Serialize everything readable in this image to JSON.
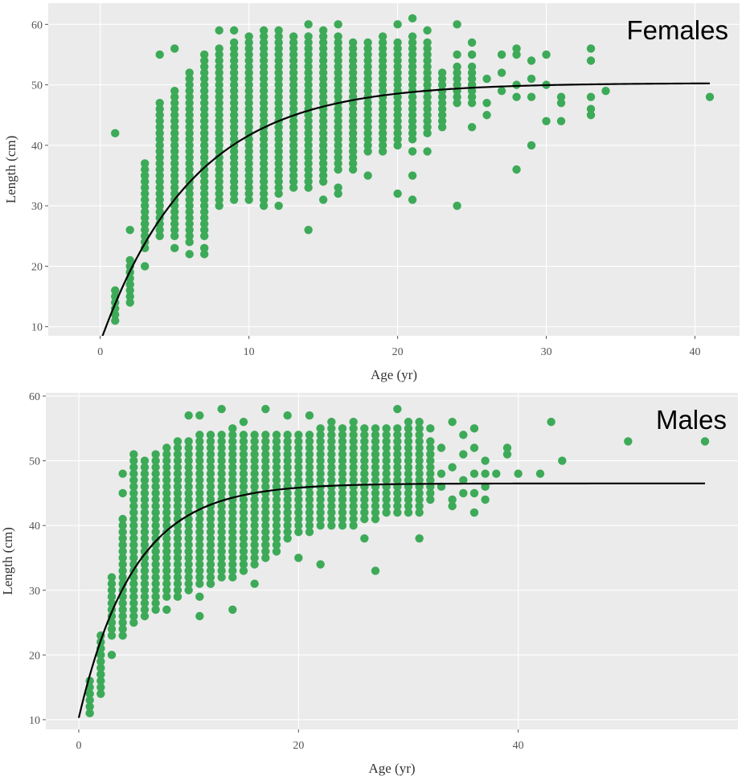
{
  "chart_data": [
    {
      "type": "scatter",
      "title": "Females",
      "xlabel": "Age (yr)",
      "ylabel": "Length (cm)",
      "xlim": [
        -3.5,
        43
      ],
      "ylim": [
        8.5,
        63.5
      ],
      "xticks": [
        0,
        10,
        20,
        30,
        40
      ],
      "yticks": [
        10,
        20,
        30,
        40,
        50,
        60
      ],
      "grid": true,
      "background": "#ebebeb",
      "point_color": "#3daa58",
      "line_color": "#000000",
      "range_series": {
        "name": "",
        "columns": [
          {
            "x": 1,
            "ymin": 11,
            "ymax": 16
          },
          {
            "x": 2,
            "ymin": 14,
            "ymax": 21
          },
          {
            "x": 3,
            "ymin": 23,
            "ymax": 37
          },
          {
            "x": 4,
            "ymin": 25,
            "ymax": 47
          },
          {
            "x": 5,
            "ymin": 25,
            "ymax": 49
          },
          {
            "x": 6,
            "ymin": 24,
            "ymax": 52
          },
          {
            "x": 7,
            "ymin": 25,
            "ymax": 55
          },
          {
            "x": 8,
            "ymin": 30,
            "ymax": 56
          },
          {
            "x": 9,
            "ymin": 31,
            "ymax": 57
          },
          {
            "x": 10,
            "ymin": 31,
            "ymax": 58
          },
          {
            "x": 11,
            "ymin": 31,
            "ymax": 58
          },
          {
            "x": 12,
            "ymin": 32,
            "ymax": 58
          },
          {
            "x": 13,
            "ymin": 33,
            "ymax": 58
          },
          {
            "x": 14,
            "ymin": 33,
            "ymax": 58
          },
          {
            "x": 15,
            "ymin": 34,
            "ymax": 58
          },
          {
            "x": 16,
            "ymin": 36,
            "ymax": 58
          },
          {
            "x": 17,
            "ymin": 37,
            "ymax": 57
          },
          {
            "x": 18,
            "ymin": 39,
            "ymax": 57
          },
          {
            "x": 19,
            "ymin": 40,
            "ymax": 57
          },
          {
            "x": 20,
            "ymin": 40,
            "ymax": 57
          },
          {
            "x": 21,
            "ymin": 41,
            "ymax": 58
          },
          {
            "x": 22,
            "ymin": 42,
            "ymax": 57
          },
          {
            "x": 23,
            "ymin": 43,
            "ymax": 52
          },
          {
            "x": 24,
            "ymin": 47,
            "ymax": 53
          },
          {
            "x": 25,
            "ymin": 47,
            "ymax": 53
          }
        ]
      },
      "points": [
        [
          1,
          42
        ],
        [
          2,
          26
        ],
        [
          2,
          17
        ],
        [
          3,
          20
        ],
        [
          3,
          27
        ],
        [
          3,
          35
        ],
        [
          4,
          55
        ],
        [
          5,
          56
        ],
        [
          5,
          23
        ],
        [
          6,
          22
        ],
        [
          7,
          23
        ],
        [
          7,
          22
        ],
        [
          8,
          59
        ],
        [
          9,
          59
        ],
        [
          11,
          30
        ],
        [
          11,
          59
        ],
        [
          12,
          30
        ],
        [
          12,
          59
        ],
        [
          14,
          60
        ],
        [
          14,
          26
        ],
        [
          15,
          59
        ],
        [
          15,
          31
        ],
        [
          16,
          60
        ],
        [
          16,
          32
        ],
        [
          16,
          33
        ],
        [
          17,
          36
        ],
        [
          18,
          35
        ],
        [
          19,
          39
        ],
        [
          19,
          58
        ],
        [
          20,
          60
        ],
        [
          20,
          32
        ],
        [
          21,
          61
        ],
        [
          21,
          31
        ],
        [
          21,
          35
        ],
        [
          21,
          39
        ],
        [
          22,
          59
        ],
        [
          22,
          39
        ],
        [
          24,
          60
        ],
        [
          24,
          55
        ],
        [
          24,
          30
        ],
        [
          25,
          57
        ],
        [
          25,
          55
        ],
        [
          25,
          43
        ],
        [
          25,
          50
        ],
        [
          26,
          51
        ],
        [
          26,
          47
        ],
        [
          26,
          45
        ],
        [
          27,
          55
        ],
        [
          27,
          52
        ],
        [
          27,
          49
        ],
        [
          28,
          56
        ],
        [
          28,
          55
        ],
        [
          28,
          50
        ],
        [
          28,
          48
        ],
        [
          28,
          36
        ],
        [
          29,
          54
        ],
        [
          29,
          51
        ],
        [
          29,
          48
        ],
        [
          29,
          40
        ],
        [
          30,
          55
        ],
        [
          30,
          50
        ],
        [
          30,
          44
        ],
        [
          31,
          48
        ],
        [
          31,
          47
        ],
        [
          31,
          44
        ],
        [
          33,
          56
        ],
        [
          33,
          54
        ],
        [
          33,
          48
        ],
        [
          33,
          46
        ],
        [
          33,
          45
        ],
        [
          34,
          49
        ],
        [
          41,
          48
        ]
      ],
      "curve": {
        "Linf": 50.3,
        "K": 0.16,
        "t0": -1.0,
        "x_end": 41
      }
    },
    {
      "type": "scatter",
      "title": "Males",
      "xlabel": "Age (yr)",
      "ylabel": "Length (cm)",
      "xlim": [
        -3,
        60
      ],
      "ylim": [
        8.5,
        60.5
      ],
      "xticks": [
        0,
        20,
        40
      ],
      "yticks": [
        10,
        20,
        30,
        40,
        50,
        60
      ],
      "grid": true,
      "background": "#ebebeb",
      "point_color": "#3daa58",
      "line_color": "#000000",
      "range_series": {
        "name": "",
        "columns": [
          {
            "x": 1,
            "ymin": 11,
            "ymax": 16
          },
          {
            "x": 2,
            "ymin": 14,
            "ymax": 23
          },
          {
            "x": 3,
            "ymin": 23,
            "ymax": 32
          },
          {
            "x": 4,
            "ymin": 23,
            "ymax": 41
          },
          {
            "x": 5,
            "ymin": 25,
            "ymax": 50
          },
          {
            "x": 6,
            "ymin": 26,
            "ymax": 50
          },
          {
            "x": 7,
            "ymin": 27,
            "ymax": 51
          },
          {
            "x": 8,
            "ymin": 29,
            "ymax": 52
          },
          {
            "x": 9,
            "ymin": 29,
            "ymax": 53
          },
          {
            "x": 10,
            "ymin": 30,
            "ymax": 53
          },
          {
            "x": 11,
            "ymin": 31,
            "ymax": 54
          },
          {
            "x": 12,
            "ymin": 31,
            "ymax": 54
          },
          {
            "x": 13,
            "ymin": 32,
            "ymax": 54
          },
          {
            "x": 14,
            "ymin": 32,
            "ymax": 54
          },
          {
            "x": 15,
            "ymin": 33,
            "ymax": 54
          },
          {
            "x": 16,
            "ymin": 34,
            "ymax": 54
          },
          {
            "x": 17,
            "ymin": 35,
            "ymax": 54
          },
          {
            "x": 18,
            "ymin": 37,
            "ymax": 54
          },
          {
            "x": 19,
            "ymin": 38,
            "ymax": 54
          },
          {
            "x": 20,
            "ymin": 39,
            "ymax": 54
          },
          {
            "x": 21,
            "ymin": 39,
            "ymax": 54
          },
          {
            "x": 22,
            "ymin": 40,
            "ymax": 55
          },
          {
            "x": 23,
            "ymin": 40,
            "ymax": 55
          },
          {
            "x": 24,
            "ymin": 40,
            "ymax": 55
          },
          {
            "x": 25,
            "ymin": 40,
            "ymax": 55
          },
          {
            "x": 26,
            "ymin": 41,
            "ymax": 55
          },
          {
            "x": 27,
            "ymin": 41,
            "ymax": 55
          },
          {
            "x": 28,
            "ymin": 42,
            "ymax": 55
          },
          {
            "x": 29,
            "ymin": 42,
            "ymax": 55
          },
          {
            "x": 30,
            "ymin": 42,
            "ymax": 55
          },
          {
            "x": 31,
            "ymin": 42,
            "ymax": 55
          },
          {
            "x": 32,
            "ymin": 44,
            "ymax": 53
          }
        ]
      },
      "points": [
        [
          1,
          14
        ],
        [
          2,
          17
        ],
        [
          2,
          21
        ],
        [
          3,
          20
        ],
        [
          4,
          45
        ],
        [
          4,
          48
        ],
        [
          5,
          51
        ],
        [
          8,
          27
        ],
        [
          10,
          57
        ],
        [
          11,
          57
        ],
        [
          11,
          29
        ],
        [
          11,
          26
        ],
        [
          12,
          31
        ],
        [
          13,
          58
        ],
        [
          13,
          34
        ],
        [
          14,
          55
        ],
        [
          14,
          27
        ],
        [
          15,
          56
        ],
        [
          16,
          31
        ],
        [
          17,
          58
        ],
        [
          17,
          37
        ],
        [
          18,
          36
        ],
        [
          19,
          57
        ],
        [
          20,
          35
        ],
        [
          21,
          57
        ],
        [
          22,
          34
        ],
        [
          23,
          56
        ],
        [
          25,
          56
        ],
        [
          26,
          38
        ],
        [
          27,
          33
        ],
        [
          29,
          58
        ],
        [
          30,
          56
        ],
        [
          31,
          56
        ],
        [
          31,
          38
        ],
        [
          32,
          55
        ],
        [
          32,
          51
        ],
        [
          33,
          52
        ],
        [
          33,
          48
        ],
        [
          33,
          46
        ],
        [
          34,
          56
        ],
        [
          34,
          49
        ],
        [
          34,
          44
        ],
        [
          34,
          43
        ],
        [
          35,
          54
        ],
        [
          35,
          51
        ],
        [
          35,
          47
        ],
        [
          35,
          45
        ],
        [
          36,
          55
        ],
        [
          36,
          52
        ],
        [
          36,
          48
        ],
        [
          36,
          45
        ],
        [
          36,
          42
        ],
        [
          37,
          50
        ],
        [
          37,
          48
        ],
        [
          37,
          46
        ],
        [
          37,
          44
        ],
        [
          38,
          48
        ],
        [
          39,
          52
        ],
        [
          39,
          51
        ],
        [
          40,
          48
        ],
        [
          42,
          48
        ],
        [
          43,
          56
        ],
        [
          44,
          50
        ],
        [
          50,
          53
        ],
        [
          57,
          53
        ]
      ],
      "curve": {
        "Linf": 46.5,
        "K": 0.2,
        "t0": -1.25,
        "x_end": 57
      }
    }
  ]
}
